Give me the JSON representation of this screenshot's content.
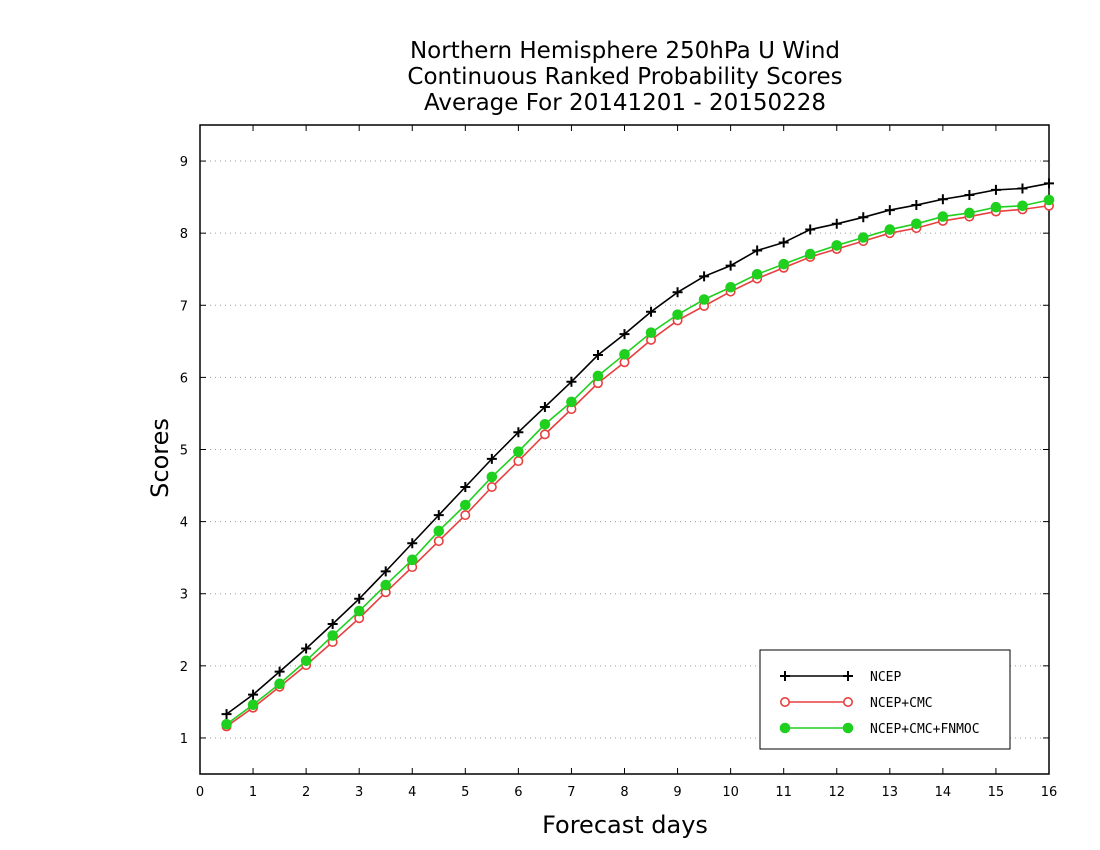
{
  "chart_data": {
    "type": "line",
    "title_lines": [
      "Northern Hemisphere 250hPa U Wind",
      "Continuous Ranked Probability Scores",
      "Average For 20141201 - 20150228"
    ],
    "xlabel": "Forecast days",
    "ylabel": "Scores",
    "xlim": [
      0,
      16
    ],
    "ylim": [
      0.5,
      9.5
    ],
    "xticks": [
      0,
      1,
      2,
      3,
      4,
      5,
      6,
      7,
      8,
      9,
      10,
      11,
      12,
      13,
      14,
      15,
      16
    ],
    "yticks": [
      1,
      2,
      3,
      4,
      5,
      6,
      7,
      8,
      9
    ],
    "grid": "horizontal dotted",
    "legend_position": "bottom-right",
    "x": [
      0.5,
      1.0,
      1.5,
      2.0,
      2.5,
      3.0,
      3.5,
      4.0,
      4.5,
      5.0,
      5.5,
      6.0,
      6.5,
      7.0,
      7.5,
      8.0,
      8.5,
      9.0,
      9.5,
      10.0,
      10.5,
      11.0,
      11.5,
      12.0,
      12.5,
      13.0,
      13.5,
      14.0,
      14.5,
      15.0,
      15.5,
      16.0
    ],
    "series": [
      {
        "name": "NCEP",
        "color": "#000000",
        "marker": "plus",
        "values": [
          1.33,
          1.6,
          1.92,
          2.24,
          2.58,
          2.93,
          3.31,
          3.7,
          4.09,
          4.48,
          4.87,
          5.24,
          5.59,
          5.94,
          6.31,
          6.6,
          6.91,
          7.18,
          7.4,
          7.55,
          7.76,
          7.87,
          8.05,
          8.13,
          8.22,
          8.32,
          8.39,
          8.47,
          8.53,
          8.6,
          8.62,
          8.69
        ]
      },
      {
        "name": "NCEP+CMC",
        "color": "#e8403f",
        "marker": "open-circle",
        "values": [
          1.16,
          1.42,
          1.71,
          2.01,
          2.33,
          2.66,
          3.02,
          3.37,
          3.73,
          4.09,
          4.48,
          4.84,
          5.21,
          5.56,
          5.92,
          6.21,
          6.52,
          6.79,
          6.99,
          7.19,
          7.37,
          7.52,
          7.67,
          7.78,
          7.89,
          8.0,
          8.07,
          8.17,
          8.23,
          8.3,
          8.33,
          8.38
        ]
      },
      {
        "name": "NCEP+CMC+FNMOC",
        "color": "#1fd01f",
        "marker": "filled-circle",
        "values": [
          1.19,
          1.46,
          1.75,
          2.07,
          2.42,
          2.76,
          3.12,
          3.47,
          3.87,
          4.23,
          4.62,
          4.97,
          5.35,
          5.66,
          6.02,
          6.32,
          6.62,
          6.87,
          7.08,
          7.25,
          7.43,
          7.57,
          7.71,
          7.83,
          7.94,
          8.05,
          8.13,
          8.23,
          8.28,
          8.36,
          8.38,
          8.46
        ]
      }
    ]
  }
}
